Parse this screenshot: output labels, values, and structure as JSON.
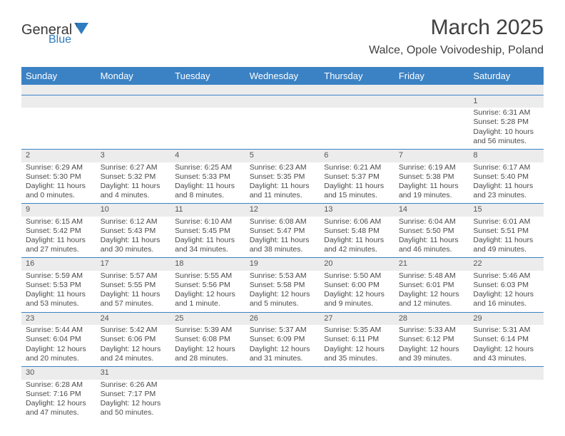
{
  "logo": {
    "textDark": "General",
    "textBlue": "Blue"
  },
  "title": "March 2025",
  "location": "Walce, Opole Voivodeship, Poland",
  "colors": {
    "headerBg": "#3b82c4",
    "headerText": "#ffffff",
    "dayBarBg": "#ececec",
    "cellBorder": "#3b82c4",
    "text": "#4a4a4a",
    "logoDark": "#3a3a3a",
    "logoBlue": "#2f7bbf"
  },
  "weekdays": [
    "Sunday",
    "Monday",
    "Tuesday",
    "Wednesday",
    "Thursday",
    "Friday",
    "Saturday"
  ],
  "weeks": [
    [
      null,
      null,
      null,
      null,
      null,
      null,
      {
        "n": 1,
        "sunrise": "6:31 AM",
        "sunset": "5:28 PM",
        "daylight": "10 hours and 56 minutes."
      }
    ],
    [
      {
        "n": 2,
        "sunrise": "6:29 AM",
        "sunset": "5:30 PM",
        "daylight": "11 hours and 0 minutes."
      },
      {
        "n": 3,
        "sunrise": "6:27 AM",
        "sunset": "5:32 PM",
        "daylight": "11 hours and 4 minutes."
      },
      {
        "n": 4,
        "sunrise": "6:25 AM",
        "sunset": "5:33 PM",
        "daylight": "11 hours and 8 minutes."
      },
      {
        "n": 5,
        "sunrise": "6:23 AM",
        "sunset": "5:35 PM",
        "daylight": "11 hours and 11 minutes."
      },
      {
        "n": 6,
        "sunrise": "6:21 AM",
        "sunset": "5:37 PM",
        "daylight": "11 hours and 15 minutes."
      },
      {
        "n": 7,
        "sunrise": "6:19 AM",
        "sunset": "5:38 PM",
        "daylight": "11 hours and 19 minutes."
      },
      {
        "n": 8,
        "sunrise": "6:17 AM",
        "sunset": "5:40 PM",
        "daylight": "11 hours and 23 minutes."
      }
    ],
    [
      {
        "n": 9,
        "sunrise": "6:15 AM",
        "sunset": "5:42 PM",
        "daylight": "11 hours and 27 minutes."
      },
      {
        "n": 10,
        "sunrise": "6:12 AM",
        "sunset": "5:43 PM",
        "daylight": "11 hours and 30 minutes."
      },
      {
        "n": 11,
        "sunrise": "6:10 AM",
        "sunset": "5:45 PM",
        "daylight": "11 hours and 34 minutes."
      },
      {
        "n": 12,
        "sunrise": "6:08 AM",
        "sunset": "5:47 PM",
        "daylight": "11 hours and 38 minutes."
      },
      {
        "n": 13,
        "sunrise": "6:06 AM",
        "sunset": "5:48 PM",
        "daylight": "11 hours and 42 minutes."
      },
      {
        "n": 14,
        "sunrise": "6:04 AM",
        "sunset": "5:50 PM",
        "daylight": "11 hours and 46 minutes."
      },
      {
        "n": 15,
        "sunrise": "6:01 AM",
        "sunset": "5:51 PM",
        "daylight": "11 hours and 49 minutes."
      }
    ],
    [
      {
        "n": 16,
        "sunrise": "5:59 AM",
        "sunset": "5:53 PM",
        "daylight": "11 hours and 53 minutes."
      },
      {
        "n": 17,
        "sunrise": "5:57 AM",
        "sunset": "5:55 PM",
        "daylight": "11 hours and 57 minutes."
      },
      {
        "n": 18,
        "sunrise": "5:55 AM",
        "sunset": "5:56 PM",
        "daylight": "12 hours and 1 minute."
      },
      {
        "n": 19,
        "sunrise": "5:53 AM",
        "sunset": "5:58 PM",
        "daylight": "12 hours and 5 minutes."
      },
      {
        "n": 20,
        "sunrise": "5:50 AM",
        "sunset": "6:00 PM",
        "daylight": "12 hours and 9 minutes."
      },
      {
        "n": 21,
        "sunrise": "5:48 AM",
        "sunset": "6:01 PM",
        "daylight": "12 hours and 12 minutes."
      },
      {
        "n": 22,
        "sunrise": "5:46 AM",
        "sunset": "6:03 PM",
        "daylight": "12 hours and 16 minutes."
      }
    ],
    [
      {
        "n": 23,
        "sunrise": "5:44 AM",
        "sunset": "6:04 PM",
        "daylight": "12 hours and 20 minutes."
      },
      {
        "n": 24,
        "sunrise": "5:42 AM",
        "sunset": "6:06 PM",
        "daylight": "12 hours and 24 minutes."
      },
      {
        "n": 25,
        "sunrise": "5:39 AM",
        "sunset": "6:08 PM",
        "daylight": "12 hours and 28 minutes."
      },
      {
        "n": 26,
        "sunrise": "5:37 AM",
        "sunset": "6:09 PM",
        "daylight": "12 hours and 31 minutes."
      },
      {
        "n": 27,
        "sunrise": "5:35 AM",
        "sunset": "6:11 PM",
        "daylight": "12 hours and 35 minutes."
      },
      {
        "n": 28,
        "sunrise": "5:33 AM",
        "sunset": "6:12 PM",
        "daylight": "12 hours and 39 minutes."
      },
      {
        "n": 29,
        "sunrise": "5:31 AM",
        "sunset": "6:14 PM",
        "daylight": "12 hours and 43 minutes."
      }
    ],
    [
      {
        "n": 30,
        "sunrise": "6:28 AM",
        "sunset": "7:16 PM",
        "daylight": "12 hours and 47 minutes."
      },
      {
        "n": 31,
        "sunrise": "6:26 AM",
        "sunset": "7:17 PM",
        "daylight": "12 hours and 50 minutes."
      },
      null,
      null,
      null,
      null,
      null
    ]
  ]
}
